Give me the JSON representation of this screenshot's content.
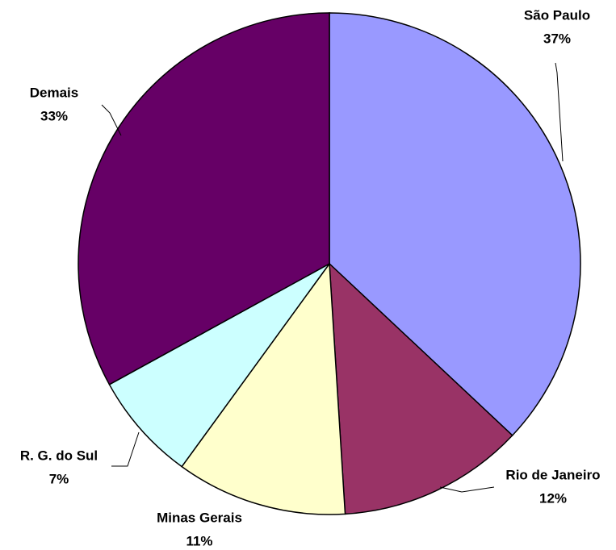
{
  "chart_data": {
    "type": "pie",
    "categories": [
      "São Paulo",
      "Rio de Janeiro",
      "Minas Gerais",
      "R. G. do Sul",
      "Demais"
    ],
    "values": [
      37,
      12,
      11,
      7,
      33
    ],
    "value_labels": [
      "37%",
      "12%",
      "11%",
      "7%",
      "33%"
    ],
    "colors": [
      "#9999ff",
      "#993366",
      "#ffffcc",
      "#ccffff",
      "#660066"
    ]
  }
}
